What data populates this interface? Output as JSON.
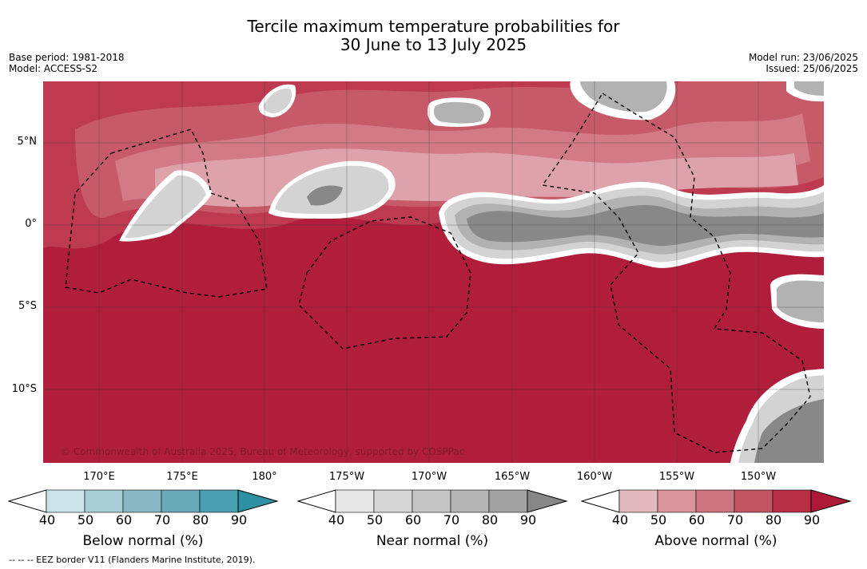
{
  "title_line1": "Tercile maximum temperature probabilities for",
  "title_line2": "30 June to 13 July 2025",
  "meta_left": {
    "base_period": "Base period: 1981-2018",
    "model": "Model: ACCESS-S2"
  },
  "meta_right": {
    "model_run": "Model run: 23/06/2025",
    "issued": "Issued: 25/06/2025"
  },
  "lat_ticks": [
    "5°N",
    "0°",
    "5°S",
    "10°S"
  ],
  "lon_ticks": [
    "170°E",
    "175°E",
    "180°",
    "175°W",
    "170°W",
    "165°W",
    "160°W",
    "155°W",
    "150°W"
  ],
  "copyright": "© Commonwealth of Australia 2025, Bureau of Meteorology, supported by COSPPac",
  "legends": [
    {
      "label": "Below normal (%)",
      "ticks": [
        "40",
        "50",
        "60",
        "70",
        "80",
        "90"
      ],
      "colors": [
        "#ffffff",
        "#c9e3e9",
        "#a8cdd4",
        "#89b8c4",
        "#6aa9b8",
        "#4a9fb0",
        "#2d90a3"
      ]
    },
    {
      "label": "Near normal (%)",
      "ticks": [
        "40",
        "50",
        "60",
        "70",
        "80",
        "90"
      ],
      "colors": [
        "#ffffff",
        "#e6e6e6",
        "#d6d6d6",
        "#c6c6c6",
        "#b5b5b5",
        "#a2a2a2",
        "#878787"
      ]
    },
    {
      "label": "Above normal (%)",
      "ticks": [
        "40",
        "50",
        "60",
        "70",
        "80",
        "90"
      ],
      "colors": [
        "#ffffff",
        "#e2b9bf",
        "#d9949c",
        "#cc7480",
        "#c25564",
        "#b82f45",
        "#ad1a38"
      ]
    }
  ],
  "eez_note": "--  --  -- EEZ border V11 (Flanders Marine Institute, 2019).",
  "map_colors": {
    "above_90": "#b01e3b",
    "above_80": "#bd3a50",
    "above_70": "#c75a69",
    "above_60": "#d27a86",
    "above_50": "#dea2aa",
    "near_50": "#d3d3d3",
    "near_70": "#b2b2b2",
    "near_90": "#888888"
  }
}
